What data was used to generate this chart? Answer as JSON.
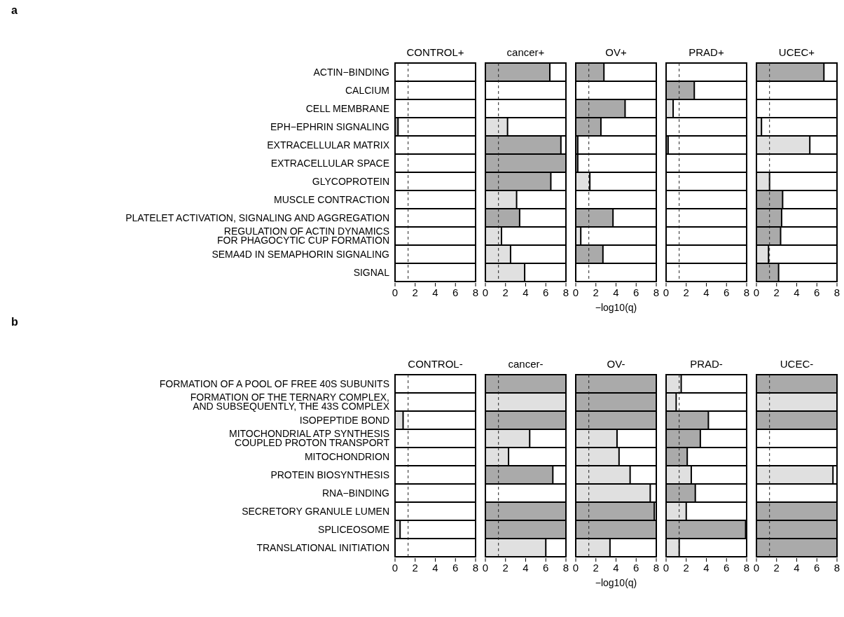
{
  "chart_data": [
    {
      "type": "bar",
      "orientation": "horizontal",
      "title": "CONTROL+",
      "annotations": [
        "a"
      ],
      "categories": [
        "ACTIN−BINDING",
        "CALCIUM",
        "CELL MEMBRANE",
        "EPH−EPHRIN SIGNALING",
        "EXTRACELLULAR MATRIX",
        "EXTRACELLULAR SPACE",
        "GLYCOPROTEIN",
        "MUSCLE CONTRACTION",
        "PLATELET ACTIVATION, SIGNALING AND AGGREGATION",
        "REGULATION OF ACTIN DYNAMICS FOR PHAGOCYTIC CUP FORMATION",
        "SEMA4D IN SEMAPHORIN SIGNALING",
        "SIGNAL"
      ],
      "values": [
        0,
        0,
        0,
        0.3,
        0,
        0,
        0,
        0,
        0,
        0,
        0,
        0
      ],
      "colors": [
        "#e0e0e0",
        "#e0e0e0",
        "#e0e0e0",
        "#aaaaaa",
        "#e0e0e0",
        "#e0e0e0",
        "#e0e0e0",
        "#e0e0e0",
        "#e0e0e0",
        "#e0e0e0",
        "#e0e0e0",
        "#e0e0e0"
      ],
      "xlim": [
        0,
        8
      ],
      "xticks": [
        0,
        2,
        4,
        6,
        8
      ],
      "ref_lines": [
        {
          "axis": "x",
          "value": 1.3,
          "line_style": "dashed"
        }
      ]
    },
    {
      "type": "bar",
      "orientation": "horizontal",
      "title": "cancer+",
      "tick_labels": "x",
      "categories": [
        null,
        null,
        null,
        null,
        null,
        null,
        null,
        null,
        null,
        null,
        null,
        null
      ],
      "values": [
        6.4,
        0,
        0,
        2.2,
        7.5,
        8,
        6.5,
        3.1,
        3.4,
        1.6,
        2.5,
        3.9
      ],
      "colors": [
        "#aaaaaa",
        "#e0e0e0",
        "#e0e0e0",
        "#e0e0e0",
        "#aaaaaa",
        "#aaaaaa",
        "#aaaaaa",
        "#e0e0e0",
        "#aaaaaa",
        "#e0e0e0",
        "#e0e0e0",
        "#e0e0e0"
      ],
      "xlim": [
        0,
        8
      ],
      "xticks": [
        0,
        2,
        4,
        6,
        8
      ],
      "ref_lines": [
        {
          "axis": "x",
          "value": 1.3,
          "line_style": "dashed"
        }
      ]
    },
    {
      "type": "bar",
      "orientation": "horizontal",
      "title": "OV+",
      "xlabel": "−log10(q)",
      "tick_labels": "x",
      "categories": [
        null,
        null,
        null,
        null,
        null,
        null,
        null,
        null,
        null,
        null,
        null,
        null
      ],
      "values": [
        2.8,
        0,
        4.9,
        2.5,
        0.2,
        0.2,
        1.4,
        0,
        3.7,
        0.5,
        2.7,
        0
      ],
      "colors": [
        "#aaaaaa",
        "#e0e0e0",
        "#aaaaaa",
        "#aaaaaa",
        "#aaaaaa",
        "#aaaaaa",
        "#e0e0e0",
        "#e0e0e0",
        "#aaaaaa",
        "#e0e0e0",
        "#aaaaaa",
        "#e0e0e0"
      ],
      "xlim": [
        0,
        8
      ],
      "xticks": [
        0,
        2,
        4,
        6,
        8
      ],
      "ref_lines": [
        {
          "axis": "x",
          "value": 1.3,
          "line_style": "dashed"
        }
      ]
    },
    {
      "type": "bar",
      "orientation": "horizontal",
      "title": "PRAD+",
      "tick_labels": "x",
      "categories": [
        null,
        null,
        null,
        null,
        null,
        null,
        null,
        null,
        null,
        null,
        null,
        null
      ],
      "values": [
        0,
        2.8,
        0.7,
        0,
        0.2,
        0,
        0,
        0,
        0,
        0,
        0,
        0
      ],
      "colors": [
        "#e0e0e0",
        "#aaaaaa",
        "#e0e0e0",
        "#e0e0e0",
        "#aaaaaa",
        "#e0e0e0",
        "#e0e0e0",
        "#e0e0e0",
        "#e0e0e0",
        "#e0e0e0",
        "#e0e0e0",
        "#e0e0e0"
      ],
      "xlim": [
        0,
        8
      ],
      "xticks": [
        0,
        2,
        4,
        6,
        8
      ],
      "ref_lines": [
        {
          "axis": "x",
          "value": 1.3,
          "line_style": "dashed"
        }
      ]
    },
    {
      "type": "bar",
      "orientation": "horizontal",
      "title": "UCEC+",
      "tick_labels": "x",
      "categories": [
        null,
        null,
        null,
        null,
        null,
        null,
        null,
        null,
        null,
        null,
        null,
        null
      ],
      "values": [
        6.7,
        0,
        0,
        0.5,
        5.3,
        0,
        1.3,
        2.6,
        2.5,
        2.4,
        1.2,
        2.2
      ],
      "colors": [
        "#aaaaaa",
        "#e0e0e0",
        "#e0e0e0",
        "#e0e0e0",
        "#e0e0e0",
        "#e0e0e0",
        "#e0e0e0",
        "#aaaaaa",
        "#aaaaaa",
        "#aaaaaa",
        "#e0e0e0",
        "#aaaaaa"
      ],
      "xlim": [
        0,
        8
      ],
      "xticks": [
        0,
        2,
        4,
        6,
        8
      ],
      "ref_lines": [
        {
          "axis": "x",
          "value": 1.3,
          "line_style": "dashed"
        }
      ]
    },
    {
      "type": "bar",
      "orientation": "horizontal",
      "title": "CONTROL-",
      "annotations": [
        "b"
      ],
      "categories": [
        "FORMATION OF A POOL OF FREE 40S SUBUNITS",
        "FORMATION OF THE TERNARY COMPLEX, AND SUBSEQUENTLY, THE 43S COMPLEX",
        "ISOPEPTIDE BOND",
        "MITOCHONDRIAL ATP SYNTHESIS COUPLED PROTON TRANSPORT",
        "MITOCHONDRION",
        "PROTEIN BIOSYNTHESIS",
        "RNA−BINDING",
        "SECRETORY GRANULE LUMEN",
        "SPLICEOSOME",
        "TRANSLATIONAL INITIATION"
      ],
      "values": [
        0,
        0,
        0.8,
        0,
        0,
        0,
        0,
        0,
        0.5,
        0
      ],
      "colors": [
        "#e0e0e0",
        "#e0e0e0",
        "#e0e0e0",
        "#e0e0e0",
        "#e0e0e0",
        "#e0e0e0",
        "#e0e0e0",
        "#e0e0e0",
        "#e0e0e0",
        "#e0e0e0"
      ],
      "xlim": [
        0,
        8
      ],
      "xticks": [
        0,
        2,
        4,
        6,
        8
      ],
      "ref_lines": [
        {
          "axis": "x",
          "value": 1.3,
          "line_style": "dashed"
        }
      ]
    },
    {
      "type": "bar",
      "orientation": "horizontal",
      "title": "cancer-",
      "tick_labels": "x",
      "categories": [
        null,
        null,
        null,
        null,
        null,
        null,
        null,
        null,
        null,
        null
      ],
      "values": [
        8,
        8,
        8,
        4.4,
        2.3,
        6.7,
        0,
        8,
        8,
        6
      ],
      "colors": [
        "#aaaaaa",
        "#e0e0e0",
        "#aaaaaa",
        "#e0e0e0",
        "#e0e0e0",
        "#aaaaaa",
        "#e0e0e0",
        "#aaaaaa",
        "#aaaaaa",
        "#e0e0e0"
      ],
      "xlim": [
        0,
        8
      ],
      "xticks": [
        0,
        2,
        4,
        6,
        8
      ],
      "ref_lines": [
        {
          "axis": "x",
          "value": 1.3,
          "line_style": "dashed"
        }
      ]
    },
    {
      "type": "bar",
      "orientation": "horizontal",
      "title": "OV-",
      "xlabel": "−log10(q)",
      "tick_labels": "x",
      "categories": [
        null,
        null,
        null,
        null,
        null,
        null,
        null,
        null,
        null,
        null
      ],
      "values": [
        8,
        8,
        8,
        4.1,
        4.3,
        5.4,
        7.4,
        7.8,
        8,
        3.4
      ],
      "colors": [
        "#aaaaaa",
        "#aaaaaa",
        "#aaaaaa",
        "#e0e0e0",
        "#e0e0e0",
        "#e0e0e0",
        "#e0e0e0",
        "#aaaaaa",
        "#aaaaaa",
        "#e0e0e0"
      ],
      "xlim": [
        0,
        8
      ],
      "xticks": [
        0,
        2,
        4,
        6,
        8
      ],
      "ref_lines": [
        {
          "axis": "x",
          "value": 1.3,
          "line_style": "dashed"
        }
      ]
    },
    {
      "type": "bar",
      "orientation": "horizontal",
      "title": "PRAD-",
      "tick_labels": "x",
      "categories": [
        null,
        null,
        null,
        null,
        null,
        null,
        null,
        null,
        null,
        null
      ],
      "values": [
        1.5,
        1,
        4.2,
        3.4,
        2.1,
        2.5,
        2.9,
        2,
        7.9,
        1.3
      ],
      "colors": [
        "#e0e0e0",
        "#e0e0e0",
        "#aaaaaa",
        "#aaaaaa",
        "#aaaaaa",
        "#e0e0e0",
        "#aaaaaa",
        "#e0e0e0",
        "#aaaaaa",
        "#e0e0e0"
      ],
      "xlim": [
        0,
        8
      ],
      "xticks": [
        0,
        2,
        4,
        6,
        8
      ],
      "ref_lines": [
        {
          "axis": "x",
          "value": 1.3,
          "line_style": "dashed"
        }
      ]
    },
    {
      "type": "bar",
      "orientation": "horizontal",
      "title": "UCEC-",
      "tick_labels": "x",
      "categories": [
        null,
        null,
        null,
        null,
        null,
        null,
        null,
        null,
        null,
        null
      ],
      "values": [
        8,
        8,
        8,
        0,
        0,
        7.6,
        0,
        8,
        8,
        8
      ],
      "colors": [
        "#aaaaaa",
        "#e0e0e0",
        "#aaaaaa",
        "#e0e0e0",
        "#e0e0e0",
        "#e0e0e0",
        "#e0e0e0",
        "#aaaaaa",
        "#aaaaaa",
        "#aaaaaa"
      ],
      "xlim": [
        0,
        8
      ],
      "xticks": [
        0,
        2,
        4,
        6,
        8
      ],
      "ref_lines": [
        {
          "axis": "x",
          "value": 1.3,
          "line_style": "dashed"
        }
      ]
    }
  ]
}
